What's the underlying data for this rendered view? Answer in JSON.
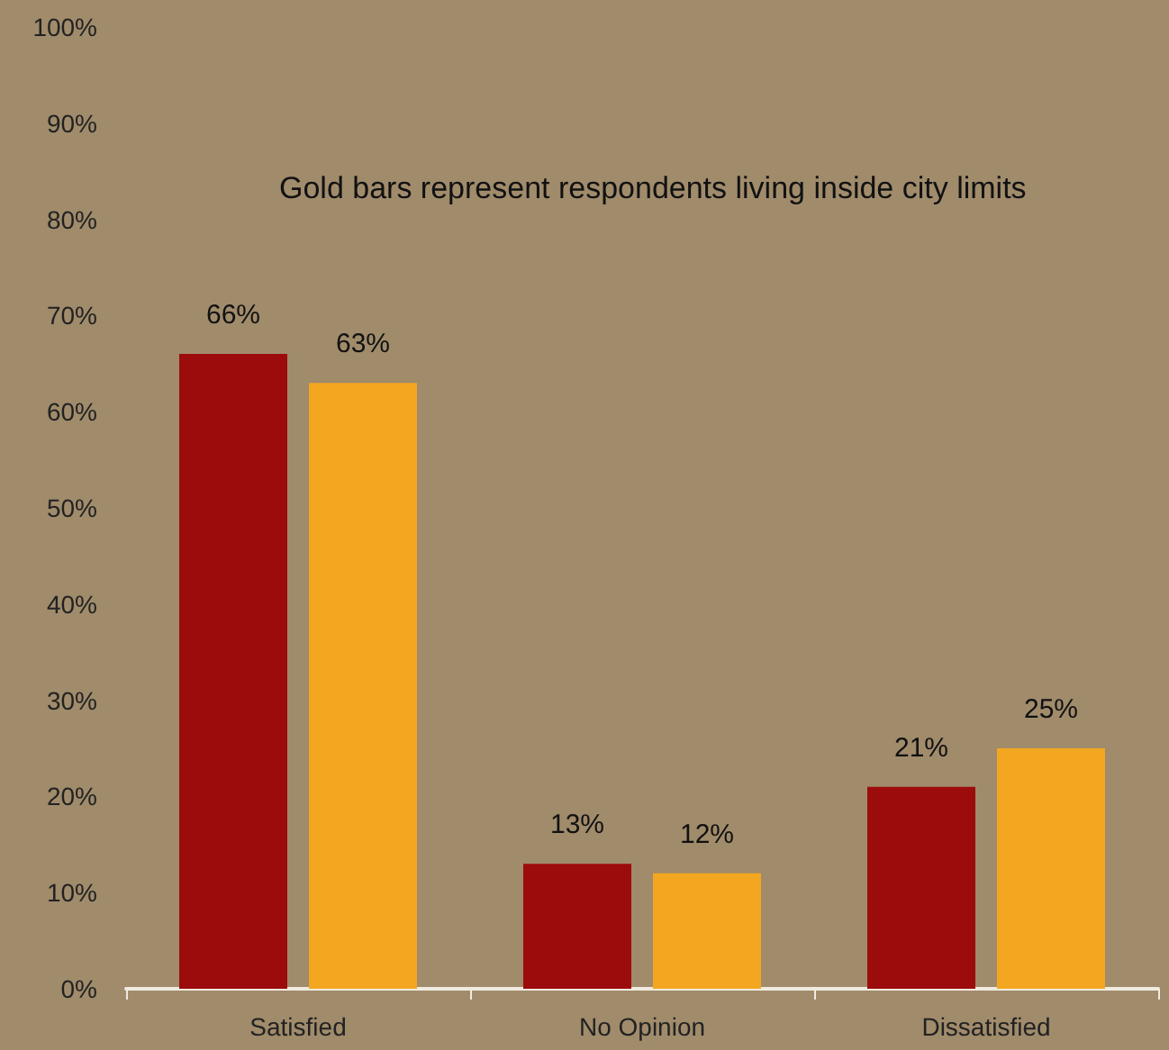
{
  "chart_data": {
    "type": "bar",
    "categories": [
      "Satisfied",
      "No Opinion",
      "Dissatisfied"
    ],
    "series": [
      {
        "color": "#9c0c0c",
        "values": [
          66,
          13,
          21
        ],
        "value_labels": [
          "66%",
          "13%",
          "21%"
        ]
      },
      {
        "color": "#f3a620",
        "values": [
          63,
          12,
          25
        ],
        "value_labels": [
          "63%",
          "12%",
          "25%"
        ]
      }
    ],
    "ylim": [
      0,
      100
    ],
    "yticks": [
      {
        "value": 0,
        "label": "0%"
      },
      {
        "value": 10,
        "label": "10%"
      },
      {
        "value": 20,
        "label": "20%"
      },
      {
        "value": 30,
        "label": "30%"
      },
      {
        "value": 40,
        "label": "40%"
      },
      {
        "value": 50,
        "label": "50%"
      },
      {
        "value": 60,
        "label": "60%"
      },
      {
        "value": 70,
        "label": "70%"
      },
      {
        "value": 80,
        "label": "80%"
      },
      {
        "value": 90,
        "label": "90%"
      },
      {
        "value": 100,
        "label": "100%"
      }
    ],
    "annotations": [
      "Gold bars represent respondents living inside city limits"
    ],
    "grid": false
  }
}
